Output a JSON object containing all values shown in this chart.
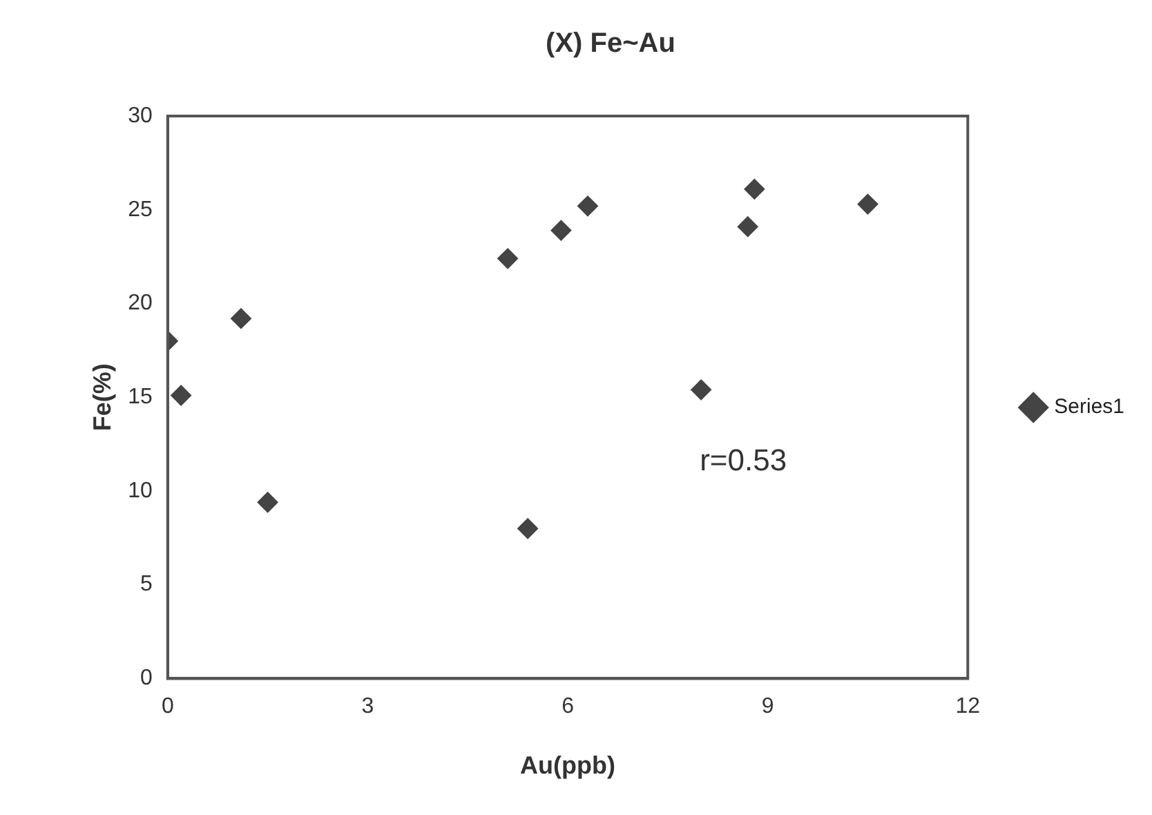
{
  "chart_data": {
    "type": "scatter",
    "title": "(X) Fe~Au",
    "xlabel": "Au(ppb)",
    "ylabel": "Fe(%)",
    "series": [
      {
        "name": "Series1",
        "color": "#444444",
        "x": [
          0,
          0.2,
          1.1,
          1.5,
          5.1,
          5.4,
          5.9,
          6.3,
          8,
          8.7,
          8.8,
          10.5
        ],
        "values": [
          18,
          15.1,
          19.2,
          9.4,
          22.4,
          8,
          23.9,
          25.2,
          15.4,
          24.1,
          26.1,
          25.3
        ]
      }
    ],
    "xlim": [
      0,
      12
    ],
    "xticks": [
      0,
      3,
      6,
      9,
      12
    ],
    "ylim": [
      0,
      30
    ],
    "yticks": [
      0,
      5,
      10,
      15,
      20,
      25,
      30
    ],
    "annotations": [
      "r=0.53"
    ],
    "legend": "right",
    "marker": "diamond",
    "grid": false
  }
}
